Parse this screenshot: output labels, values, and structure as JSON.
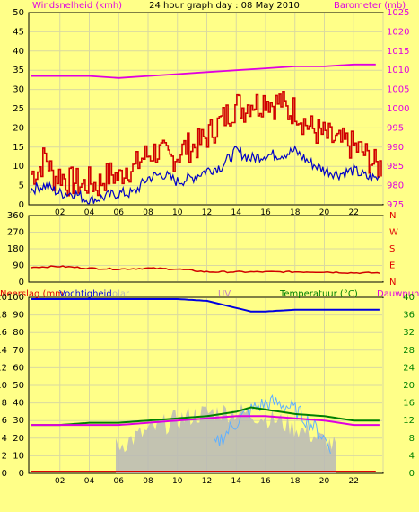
{
  "title": "24 hour graph day : 08 May 2010",
  "colors": {
    "background": "#ffff88",
    "grid": "#d9d9a0",
    "wind_gust": "#d00000",
    "wind_avg": "#0000c8",
    "barometer": "#e000e0",
    "wind_dir": "#d00000",
    "humidity": "#0000e0",
    "temperature": "#008000",
    "dewpoint": "#e000e0",
    "solar": "#b8b8b8",
    "uv": "#c080c0",
    "rain": "#e00000",
    "indoor": "#60b0ff"
  },
  "x_ticks": [
    "02",
    "04",
    "06",
    "08",
    "10",
    "12",
    "14",
    "16",
    "18",
    "20",
    "22"
  ],
  "panel1": {
    "left_label": "Windsnelheid (kmh)",
    "right_label": "Barometer (mb)",
    "left_ticks": [
      "0",
      "5",
      "10",
      "15",
      "20",
      "25",
      "30",
      "35",
      "40",
      "45",
      "50"
    ],
    "right_ticks": [
      "975",
      "980",
      "985",
      "990",
      "995",
      "1000",
      "1005",
      "1010",
      "1015",
      "1020",
      "1025"
    ]
  },
  "panel2": {
    "left_ticks": [
      "0",
      "90",
      "180",
      "270",
      "360"
    ],
    "right_ticks": [
      "N",
      "E",
      "S",
      "W",
      "N"
    ]
  },
  "panel3": {
    "label_rain": "Neerslag (mm",
    "label_humidity": "Vochtigheid",
    "label_solar": "olar",
    "label_uv": "UV",
    "label_temp": "Temperatuur (°C)",
    "label_dew": "Dauwpunt",
    "left_ticks": [
      "0",
      "2",
      "4",
      "6",
      "8",
      "10",
      "12",
      "14",
      "16",
      "18",
      "20"
    ],
    "hum_ticks": [
      "0",
      "10",
      "20",
      "30",
      "40",
      "50",
      "60",
      "70",
      "80",
      "90",
      "100"
    ],
    "right_ticks": [
      "0",
      "4",
      "8",
      "12",
      "16",
      "20",
      "24",
      "28",
      "32",
      "36",
      "40"
    ]
  },
  "chart_data": [
    {
      "type": "line",
      "title": "24 hour graph day : 08 May 2010",
      "x_unit": "hour",
      "series": [
        {
          "name": "Windsnelheid (kmh)",
          "x": [
            0,
            0.5,
            1,
            1.5,
            2,
            2.5,
            3,
            3.5,
            4,
            4.5,
            5,
            5.5,
            6,
            6.5,
            7,
            7.5,
            8,
            8.5,
            9,
            9.5,
            10,
            10.5,
            11,
            11.5,
            12,
            12.5,
            13,
            13.5,
            14,
            14.5,
            15,
            15.5,
            16,
            16.5,
            17,
            17.5,
            18,
            18.5,
            19,
            19.5,
            20,
            20.5,
            21,
            21.5,
            22,
            22.5,
            23,
            23.5
          ],
          "values": [
            8,
            9,
            13,
            7,
            8,
            6,
            6,
            5,
            6,
            5,
            7,
            8,
            7,
            10,
            9,
            12,
            13,
            14,
            13,
            12,
            13,
            15,
            15,
            16,
            18,
            20,
            22,
            24,
            26,
            25,
            27,
            26,
            28,
            26,
            27,
            24,
            25,
            22,
            20,
            19,
            18,
            17,
            16,
            16,
            15,
            14,
            12,
            10
          ]
        },
        {
          "name": "Wind average",
          "x": [
            0,
            1,
            2,
            3,
            4,
            5,
            6,
            7,
            8,
            9,
            10,
            11,
            12,
            13,
            14,
            15,
            16,
            17,
            18,
            19,
            20,
            21,
            22,
            23,
            23.5
          ],
          "values": [
            4,
            5,
            3,
            3,
            1,
            2,
            3,
            3,
            7,
            8,
            6,
            7,
            9,
            10,
            14,
            12,
            13,
            13,
            14,
            11,
            9,
            8,
            9,
            7,
            7
          ]
        },
        {
          "name": "Barometer (mb)",
          "x": [
            0,
            2,
            4,
            6,
            8,
            10,
            12,
            14,
            16,
            18,
            20,
            22,
            23.5
          ],
          "values": [
            1008.5,
            1008.5,
            1008.5,
            1008,
            1008.5,
            1009,
            1009.5,
            1010,
            1010.5,
            1011,
            1011,
            1011.5,
            1011.5
          ]
        }
      ],
      "left_axis": {
        "label": "Windsnelheid (kmh)",
        "range": [
          0,
          50
        ]
      },
      "right_axis": {
        "label": "Barometer (mb)",
        "range": [
          975,
          1025
        ]
      }
    },
    {
      "type": "line",
      "series": [
        {
          "name": "Wind direction",
          "x": [
            0,
            2,
            4,
            6,
            8,
            10,
            12,
            14,
            16,
            18,
            20,
            22,
            23.5
          ],
          "values": [
            80,
            85,
            75,
            70,
            75,
            70,
            55,
            55,
            55,
            55,
            55,
            50,
            50
          ]
        }
      ],
      "left_axis": {
        "range": [
          0,
          360
        ]
      },
      "right_axis": {
        "range": [
          "N",
          "N"
        ]
      }
    },
    {
      "type": "line",
      "series": [
        {
          "name": "Vochtigheid",
          "x": [
            0,
            2,
            4,
            6,
            8,
            10,
            12,
            13,
            14,
            15,
            16,
            18,
            20,
            22,
            23.5
          ],
          "values": [
            99,
            99,
            99,
            99,
            99,
            99,
            98,
            96,
            94,
            92,
            92,
            93,
            93,
            93,
            93
          ],
          "axis": "hum"
        },
        {
          "name": "Temperatuur (°C)",
          "x": [
            0,
            2,
            4,
            6,
            8,
            10,
            12,
            14,
            15,
            16,
            18,
            20,
            22,
            23.5
          ],
          "values": [
            11,
            11,
            11.5,
            11.5,
            12,
            12.5,
            13,
            14,
            15,
            14.5,
            13.5,
            13,
            12,
            12
          ]
        },
        {
          "name": "Dauwpunt",
          "x": [
            0,
            2,
            4,
            6,
            8,
            10,
            12,
            14,
            15,
            16,
            18,
            20,
            22,
            23.5
          ],
          "values": [
            11,
            11,
            11,
            11,
            11.5,
            12,
            12.5,
            13,
            13,
            13,
            12.5,
            12,
            11,
            11
          ]
        },
        {
          "name": "Neerslag (mm",
          "x": [
            0,
            23.5
          ],
          "values": [
            0.2,
            0.2
          ],
          "axis": "rain"
        }
      ]
    }
  ]
}
